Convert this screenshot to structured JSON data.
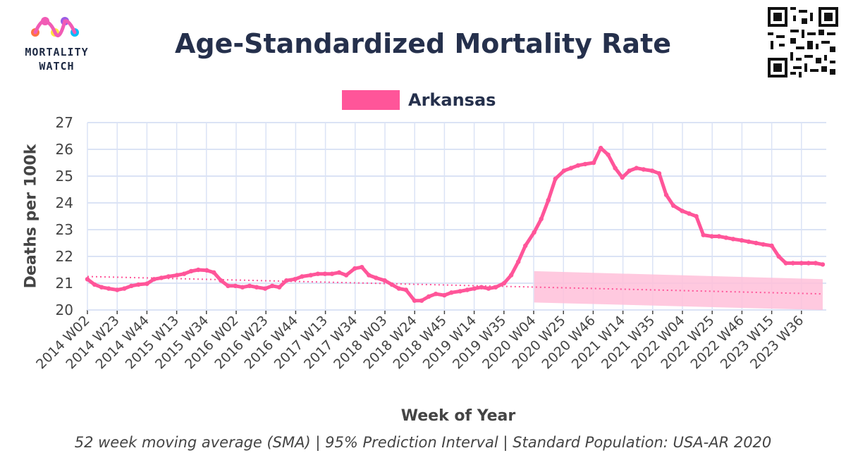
{
  "header": {
    "title": "Age-Standardized Mortality Rate",
    "logo_text_line1": "MORTALITY",
    "logo_text_line2": "WATCH"
  },
  "legend": {
    "label": "Arkansas"
  },
  "footnote": "52 week moving average (SMA) | 95% Prediction Interval | Standard Population: USA-AR 2020",
  "colors": {
    "series": "#ff5599",
    "band": "#ffc0d9",
    "text": "#25304c",
    "grid": "#dbe3f5"
  },
  "chart_data": {
    "type": "line",
    "title": "Age-Standardized Mortality Rate",
    "xlabel": "Week of Year",
    "ylabel": "Deaths per 100k",
    "ylim": [
      20,
      27
    ],
    "yticks": [
      20,
      21,
      22,
      23,
      24,
      25,
      26,
      27
    ],
    "x_tick_labels": [
      "2014 W02",
      "2014 W23",
      "2014 W44",
      "2015 W13",
      "2015 W34",
      "2016 W02",
      "2016 W23",
      "2016 W44",
      "2017 W13",
      "2017 W34",
      "2018 W03",
      "2018 W24",
      "2018 W45",
      "2019 W14",
      "2019 W35",
      "2020 W04",
      "2020 W25",
      "2020 W46",
      "2021 W14",
      "2021 W35",
      "2022 W04",
      "2022 W25",
      "2022 W46",
      "2023 W15",
      "2023 W36"
    ],
    "grid": true,
    "legend_position": "top-center",
    "series": [
      {
        "name": "Arkansas",
        "x": [
          "2014 W02",
          "2014 W07",
          "2014 W12",
          "2014 W17",
          "2014 W23",
          "2014 W28",
          "2014 W33",
          "2014 W38",
          "2014 W44",
          "2014 W49",
          "2015 W02",
          "2015 W07",
          "2015 W13",
          "2015 W18",
          "2015 W23",
          "2015 W28",
          "2015 W34",
          "2015 W39",
          "2015 W44",
          "2015 W49",
          "2016 W02",
          "2016 W07",
          "2016 W12",
          "2016 W17",
          "2016 W23",
          "2016 W28",
          "2016 W33",
          "2016 W38",
          "2016 W44",
          "2016 W49",
          "2017 W03",
          "2017 W08",
          "2017 W13",
          "2017 W18",
          "2017 W23",
          "2017 W28",
          "2017 W34",
          "2017 W39",
          "2017 W44",
          "2017 W49",
          "2018 W03",
          "2018 W08",
          "2018 W13",
          "2018 W18",
          "2018 W24",
          "2018 W29",
          "2018 W34",
          "2018 W39",
          "2018 W45",
          "2018 W50",
          "2019 W04",
          "2019 W09",
          "2019 W14",
          "2019 W19",
          "2019 W24",
          "2019 W29",
          "2019 W35",
          "2019 W40",
          "2019 W45",
          "2019 W50",
          "2020 W04",
          "2020 W09",
          "2020 W14",
          "2020 W19",
          "2020 W25",
          "2020 W30",
          "2020 W35",
          "2020 W40",
          "2020 W46",
          "2020 W51",
          "2021 W04",
          "2021 W09",
          "2021 W14",
          "2021 W19",
          "2021 W24",
          "2021 W29",
          "2021 W35",
          "2021 W40",
          "2021 W45",
          "2021 W50",
          "2022 W04",
          "2022 W09",
          "2022 W14",
          "2022 W19",
          "2022 W25",
          "2022 W30",
          "2022 W35",
          "2022 W40",
          "2022 W46",
          "2022 W51",
          "2023 W04",
          "2023 W09",
          "2023 W15",
          "2023 W20",
          "2023 W25",
          "2023 W30",
          "2023 W36",
          "2023 W41",
          "2023 W46",
          "2023 W51"
        ],
        "values": [
          21.15,
          20.95,
          20.85,
          20.8,
          20.75,
          20.8,
          20.9,
          20.95,
          20.98,
          21.15,
          21.2,
          21.25,
          21.3,
          21.35,
          21.45,
          21.5,
          21.48,
          21.4,
          21.1,
          20.9,
          20.9,
          20.85,
          20.9,
          20.85,
          20.8,
          20.9,
          20.85,
          21.1,
          21.15,
          21.25,
          21.3,
          21.35,
          21.35,
          21.35,
          21.4,
          21.3,
          21.55,
          21.6,
          21.3,
          21.2,
          21.1,
          20.95,
          20.8,
          20.75,
          20.35,
          20.35,
          20.5,
          20.6,
          20.55,
          20.65,
          20.7,
          20.75,
          20.8,
          20.85,
          20.8,
          20.85,
          21.0,
          21.3,
          21.8,
          22.4,
          22.9,
          23.4,
          24.1,
          24.9,
          25.2,
          25.3,
          25.4,
          25.45,
          25.5,
          26.05,
          25.8,
          25.3,
          24.95,
          25.2,
          25.3,
          25.25,
          25.2,
          25.1,
          24.3,
          23.9,
          23.7,
          23.6,
          23.5,
          22.8,
          22.75,
          22.75,
          22.7,
          22.65,
          22.6,
          22.55,
          22.5,
          22.45,
          22.4,
          22.0,
          21.75,
          21.75,
          21.75,
          21.75,
          21.75,
          21.7
        ],
        "note": "weekly 52-week SMA points"
      }
    ],
    "baseline": {
      "x_start": "2014 W02",
      "y_start": 21.25,
      "x_end": "2023 W51",
      "y_end": 20.6
    },
    "prediction_interval": {
      "x_start": "2020 W04",
      "x_end": "2023 W51",
      "upper_start": 21.45,
      "upper_end": 21.15,
      "lower_start": 20.28,
      "lower_end": 20.0
    }
  }
}
